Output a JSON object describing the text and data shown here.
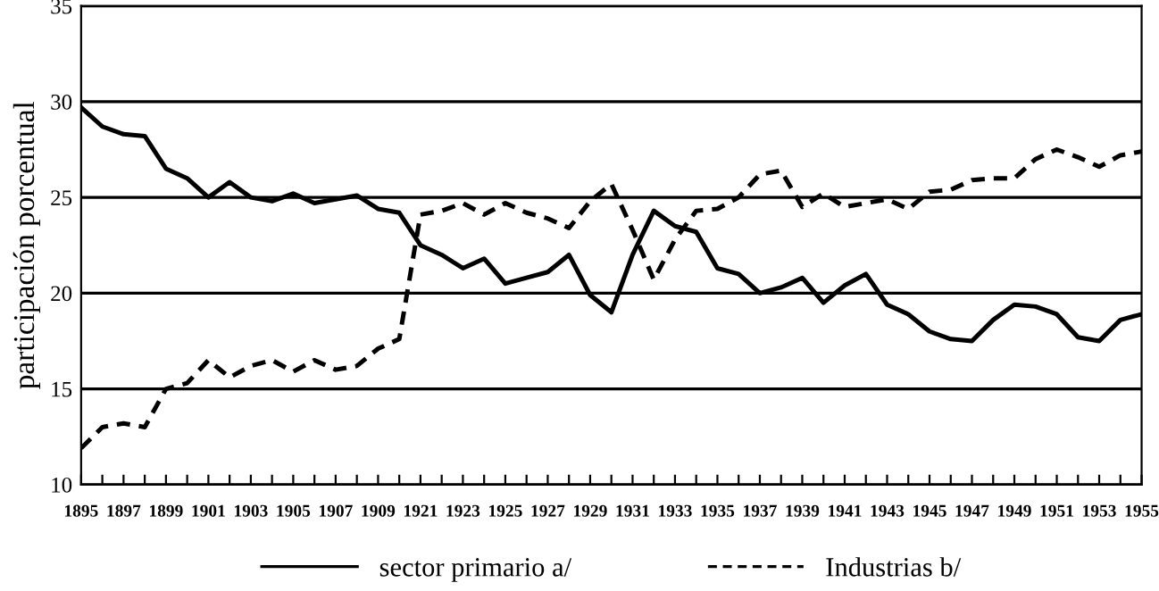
{
  "chart_data": {
    "type": "line",
    "ylabel": "participación porcentual",
    "categories": [
      "1895",
      null,
      "1897",
      null,
      "1899",
      null,
      "1901",
      null,
      "1903",
      null,
      "1905",
      null,
      "1907",
      null,
      "1909",
      null,
      "1921",
      null,
      "1923",
      null,
      "1925",
      null,
      "1927",
      null,
      "1929",
      null,
      "1931",
      null,
      "1933",
      null,
      "1935",
      null,
      "1937",
      null,
      "1939",
      null,
      "1941",
      null,
      "1943",
      null,
      "1945",
      null,
      "1947",
      null,
      "1949",
      null,
      "1951",
      null,
      "1953",
      null,
      "1955"
    ],
    "series": [
      {
        "name": "sector primario a/",
        "color": "#000000",
        "line_style": "solid",
        "values": [
          29.7,
          28.7,
          28.3,
          28.2,
          26.5,
          26.0,
          25.0,
          25.8,
          25.0,
          24.8,
          25.2,
          24.7,
          24.9,
          25.1,
          24.4,
          24.2,
          22.5,
          22.0,
          21.3,
          21.8,
          20.5,
          20.8,
          21.1,
          22.0,
          19.9,
          19.0,
          22.0,
          24.3,
          23.5,
          23.2,
          21.3,
          21.0,
          20.0,
          20.3,
          20.8,
          19.5,
          20.4,
          21.0,
          19.4,
          18.9,
          18.0,
          17.6,
          17.5,
          18.6,
          19.4,
          19.3,
          18.9,
          17.7,
          17.5,
          18.6,
          18.9
        ]
      },
      {
        "name": "Industrias b/",
        "color": "#000000",
        "line_style": "dashed",
        "values": [
          11.9,
          13.0,
          13.2,
          13.0,
          15.0,
          15.3,
          16.5,
          15.6,
          16.2,
          16.5,
          15.9,
          16.5,
          16.0,
          16.2,
          17.1,
          17.6,
          24.1,
          24.3,
          24.7,
          24.1,
          24.7,
          24.2,
          23.9,
          23.4,
          24.8,
          25.7,
          23.3,
          20.7,
          22.8,
          24.3,
          24.4,
          25.0,
          26.2,
          26.4,
          24.5,
          25.2,
          24.5,
          24.7,
          24.9,
          24.4,
          25.3,
          25.4,
          25.9,
          26.0,
          26.0,
          27.0,
          27.5,
          27.1,
          26.6,
          27.2,
          27.4
        ]
      }
    ],
    "ylim": [
      10,
      35
    ],
    "yticks": [
      10,
      15,
      20,
      25,
      30,
      35
    ],
    "grid": "y",
    "legend": "bottom",
    "marker": "none"
  }
}
